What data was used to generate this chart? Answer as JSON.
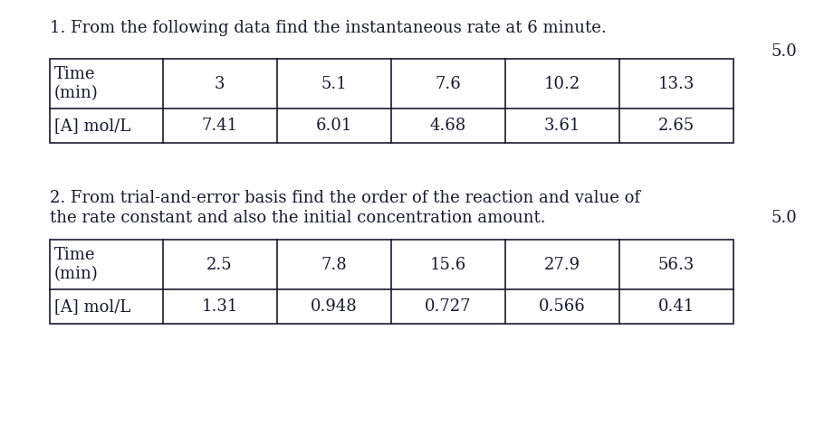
{
  "title1": "1. From the following data find the instantaneous rate at 6 minute.",
  "score1": "5.0",
  "table1_row1": [
    "Time\n(min)",
    "3",
    "5.1",
    "7.6",
    "10.2",
    "13.3"
  ],
  "table1_row2": [
    "[A] mol/L",
    "7.41",
    "6.01",
    "4.68",
    "3.61",
    "2.65"
  ],
  "title2_line1": "2. From trial-and-error basis find the order of the reaction and value of",
  "title2_line2": "the rate constant and also the initial concentration amount.",
  "score2": "5.0",
  "table2_row1": [
    "Time\n(min)",
    "2.5",
    "7.8",
    "15.6",
    "27.9",
    "56.3"
  ],
  "table2_row2": [
    "[A] mol/L",
    "1.31",
    "0.948",
    "0.727",
    "0.566",
    "0.41"
  ],
  "bg_color": "#ffffff",
  "text_color": "#1a1a2e",
  "font_size": 13,
  "title_font_size": 13
}
